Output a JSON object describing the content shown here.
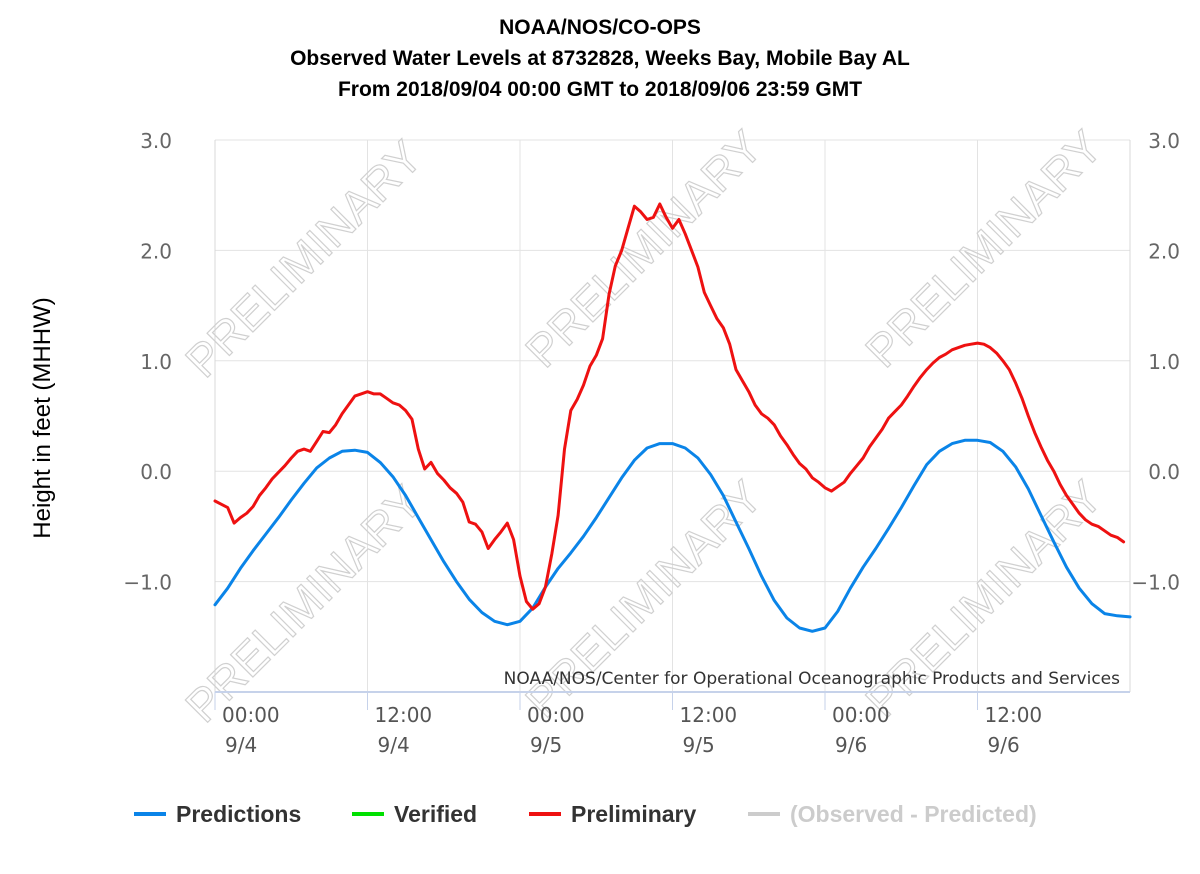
{
  "title": {
    "line1": "NOAA/NOS/CO-OPS",
    "line2": "Observed Water Levels at 8732828, Weeks Bay, Mobile Bay AL",
    "line3": "From 2018/09/04 00:00 GMT to 2018/09/06 23:59 GMT"
  },
  "credit": "NOAA/NOS/Center for Operational Oceanographic Products and Services",
  "watermark": "PRELIMINARY",
  "legend": [
    {
      "label": "Predictions",
      "color": "#0a84e8",
      "text_color": "#333333"
    },
    {
      "label": "Verified",
      "color": "#00e000",
      "text_color": "#333333"
    },
    {
      "label": "Preliminary",
      "color": "#ee1111",
      "text_color": "#333333"
    },
    {
      "label": "(Observed - Predicted)",
      "color": "#cccccc",
      "text_color": "#cccccc"
    }
  ],
  "chart_data": {
    "type": "line",
    "ylabel": "Height in feet (MHHW)",
    "ylim": [
      -2.0,
      3.0
    ],
    "yticks": [
      {
        "value": 3.0,
        "label": "3.0"
      },
      {
        "value": 2.0,
        "label": "2.0"
      },
      {
        "value": 1.0,
        "label": "1.0"
      },
      {
        "value": 0.0,
        "label": "0.0"
      },
      {
        "value": -1.0,
        "label": "−1.0"
      }
    ],
    "xlim": [
      0,
      72
    ],
    "x_unit": "hours from 2018/09/04 00:00 GMT",
    "xticks": [
      {
        "x": 0,
        "time": "00:00",
        "date": "9/4"
      },
      {
        "x": 12,
        "time": "12:00",
        "date": "9/4"
      },
      {
        "x": 24,
        "time": "00:00",
        "date": "9/5"
      },
      {
        "x": 36,
        "time": "12:00",
        "date": "9/5"
      },
      {
        "x": 48,
        "time": "00:00",
        "date": "9/6"
      },
      {
        "x": 60,
        "time": "12:00",
        "date": "9/6"
      }
    ],
    "grid": true,
    "legend_position": "bottom",
    "series": [
      {
        "name": "Predictions",
        "color": "#0a84e8",
        "points": [
          [
            0,
            -1.21
          ],
          [
            1,
            -1.06
          ],
          [
            2,
            -0.88
          ],
          [
            3,
            -0.72
          ],
          [
            4,
            -0.57
          ],
          [
            5,
            -0.42
          ],
          [
            6,
            -0.26
          ],
          [
            7,
            -0.11
          ],
          [
            8,
            0.03
          ],
          [
            9,
            0.12
          ],
          [
            10,
            0.18
          ],
          [
            11,
            0.19
          ],
          [
            12,
            0.17
          ],
          [
            13,
            0.08
          ],
          [
            14,
            -0.05
          ],
          [
            15,
            -0.22
          ],
          [
            16,
            -0.42
          ],
          [
            17,
            -0.62
          ],
          [
            18,
            -0.82
          ],
          [
            19,
            -1.0
          ],
          [
            20,
            -1.16
          ],
          [
            21,
            -1.28
          ],
          [
            22,
            -1.36
          ],
          [
            23,
            -1.39
          ],
          [
            24,
            -1.36
          ],
          [
            25,
            -1.24
          ],
          [
            26,
            -1.05
          ],
          [
            27,
            -0.88
          ],
          [
            28,
            -0.74
          ],
          [
            29,
            -0.59
          ],
          [
            30,
            -0.42
          ],
          [
            31,
            -0.24
          ],
          [
            32,
            -0.06
          ],
          [
            33,
            0.1
          ],
          [
            34,
            0.21
          ],
          [
            35,
            0.25
          ],
          [
            36,
            0.25
          ],
          [
            37,
            0.21
          ],
          [
            38,
            0.12
          ],
          [
            39,
            -0.03
          ],
          [
            40,
            -0.22
          ],
          [
            41,
            -0.46
          ],
          [
            42,
            -0.7
          ],
          [
            43,
            -0.95
          ],
          [
            44,
            -1.17
          ],
          [
            45,
            -1.33
          ],
          [
            46,
            -1.42
          ],
          [
            47,
            -1.45
          ],
          [
            48,
            -1.42
          ],
          [
            49,
            -1.27
          ],
          [
            50,
            -1.06
          ],
          [
            51,
            -0.87
          ],
          [
            52,
            -0.7
          ],
          [
            53,
            -0.52
          ],
          [
            54,
            -0.33
          ],
          [
            55,
            -0.13
          ],
          [
            56,
            0.06
          ],
          [
            57,
            0.18
          ],
          [
            58,
            0.25
          ],
          [
            59,
            0.28
          ],
          [
            60,
            0.28
          ],
          [
            61,
            0.26
          ],
          [
            62,
            0.18
          ],
          [
            63,
            0.04
          ],
          [
            64,
            -0.16
          ],
          [
            65,
            -0.4
          ],
          [
            66,
            -0.64
          ],
          [
            67,
            -0.87
          ],
          [
            68,
            -1.06
          ],
          [
            69,
            -1.2
          ],
          [
            70,
            -1.29
          ],
          [
            71,
            -1.31
          ],
          [
            72,
            -1.32
          ]
        ]
      },
      {
        "name": "Preliminary",
        "color": "#ee1111",
        "points": [
          [
            0,
            -0.27
          ],
          [
            0.5,
            -0.3
          ],
          [
            1,
            -0.33
          ],
          [
            1.5,
            -0.47
          ],
          [
            2,
            -0.42
          ],
          [
            2.5,
            -0.38
          ],
          [
            3,
            -0.32
          ],
          [
            3.5,
            -0.22
          ],
          [
            4,
            -0.15
          ],
          [
            4.5,
            -0.07
          ],
          [
            5,
            -0.01
          ],
          [
            5.5,
            0.05
          ],
          [
            6,
            0.12
          ],
          [
            6.5,
            0.18
          ],
          [
            7,
            0.2
          ],
          [
            7.5,
            0.18
          ],
          [
            8,
            0.27
          ],
          [
            8.5,
            0.36
          ],
          [
            9,
            0.35
          ],
          [
            9.5,
            0.42
          ],
          [
            10,
            0.52
          ],
          [
            10.5,
            0.6
          ],
          [
            11,
            0.68
          ],
          [
            11.5,
            0.7
          ],
          [
            12,
            0.72
          ],
          [
            12.5,
            0.7
          ],
          [
            13,
            0.7
          ],
          [
            13.5,
            0.66
          ],
          [
            14,
            0.62
          ],
          [
            14.5,
            0.6
          ],
          [
            15,
            0.55
          ],
          [
            15.5,
            0.47
          ],
          [
            16,
            0.2
          ],
          [
            16.5,
            0.02
          ],
          [
            17,
            0.08
          ],
          [
            17.5,
            -0.02
          ],
          [
            18,
            -0.08
          ],
          [
            18.5,
            -0.15
          ],
          [
            19,
            -0.2
          ],
          [
            19.5,
            -0.28
          ],
          [
            20,
            -0.46
          ],
          [
            20.5,
            -0.48
          ],
          [
            21,
            -0.55
          ],
          [
            21.5,
            -0.7
          ],
          [
            22,
            -0.62
          ],
          [
            22.5,
            -0.55
          ],
          [
            23,
            -0.47
          ],
          [
            23.5,
            -0.62
          ],
          [
            24,
            -0.95
          ],
          [
            24.5,
            -1.18
          ],
          [
            25,
            -1.25
          ],
          [
            25.5,
            -1.2
          ],
          [
            26,
            -1.05
          ],
          [
            26.5,
            -0.75
          ],
          [
            27,
            -0.4
          ],
          [
            27.5,
            0.2
          ],
          [
            28,
            0.55
          ],
          [
            28.5,
            0.65
          ],
          [
            29,
            0.78
          ],
          [
            29.5,
            0.95
          ],
          [
            30,
            1.05
          ],
          [
            30.5,
            1.2
          ],
          [
            31,
            1.6
          ],
          [
            31.5,
            1.86
          ],
          [
            32,
            2.0
          ],
          [
            32.5,
            2.2
          ],
          [
            33,
            2.4
          ],
          [
            33.5,
            2.35
          ],
          [
            34,
            2.28
          ],
          [
            34.5,
            2.3
          ],
          [
            35,
            2.42
          ],
          [
            35.5,
            2.3
          ],
          [
            36,
            2.2
          ],
          [
            36.5,
            2.28
          ],
          [
            37,
            2.15
          ],
          [
            37.5,
            2.0
          ],
          [
            38,
            1.85
          ],
          [
            38.5,
            1.62
          ],
          [
            39,
            1.5
          ],
          [
            39.5,
            1.38
          ],
          [
            40,
            1.3
          ],
          [
            40.5,
            1.15
          ],
          [
            41,
            0.92
          ],
          [
            41.5,
            0.82
          ],
          [
            42,
            0.72
          ],
          [
            42.5,
            0.6
          ],
          [
            43,
            0.52
          ],
          [
            43.5,
            0.48
          ],
          [
            44,
            0.42
          ],
          [
            44.5,
            0.32
          ],
          [
            45,
            0.24
          ],
          [
            45.5,
            0.15
          ],
          [
            46,
            0.07
          ],
          [
            46.5,
            0.02
          ],
          [
            47,
            -0.06
          ],
          [
            47.5,
            -0.1
          ],
          [
            48,
            -0.15
          ],
          [
            48.5,
            -0.18
          ],
          [
            49,
            -0.14
          ],
          [
            49.5,
            -0.1
          ],
          [
            50,
            -0.02
          ],
          [
            50.5,
            0.05
          ],
          [
            51,
            0.12
          ],
          [
            51.5,
            0.22
          ],
          [
            52,
            0.3
          ],
          [
            52.5,
            0.38
          ],
          [
            53,
            0.48
          ],
          [
            53.5,
            0.54
          ],
          [
            54,
            0.6
          ],
          [
            54.5,
            0.68
          ],
          [
            55,
            0.77
          ],
          [
            55.5,
            0.85
          ],
          [
            56,
            0.92
          ],
          [
            56.5,
            0.98
          ],
          [
            57,
            1.03
          ],
          [
            57.5,
            1.06
          ],
          [
            58,
            1.1
          ],
          [
            58.5,
            1.12
          ],
          [
            59,
            1.14
          ],
          [
            59.5,
            1.15
          ],
          [
            60,
            1.16
          ],
          [
            60.5,
            1.15
          ],
          [
            61,
            1.12
          ],
          [
            61.5,
            1.07
          ],
          [
            62,
            1.0
          ],
          [
            62.5,
            0.92
          ],
          [
            63,
            0.8
          ],
          [
            63.5,
            0.66
          ],
          [
            64,
            0.5
          ],
          [
            64.5,
            0.35
          ],
          [
            65,
            0.22
          ],
          [
            65.5,
            0.1
          ],
          [
            66,
            0.0
          ],
          [
            66.5,
            -0.12
          ],
          [
            67,
            -0.22
          ],
          [
            67.5,
            -0.3
          ],
          [
            68,
            -0.38
          ],
          [
            68.5,
            -0.44
          ],
          [
            69,
            -0.48
          ],
          [
            69.5,
            -0.5
          ],
          [
            70,
            -0.54
          ],
          [
            70.5,
            -0.58
          ],
          [
            71,
            -0.6
          ],
          [
            71.5,
            -0.64
          ]
        ]
      }
    ]
  }
}
